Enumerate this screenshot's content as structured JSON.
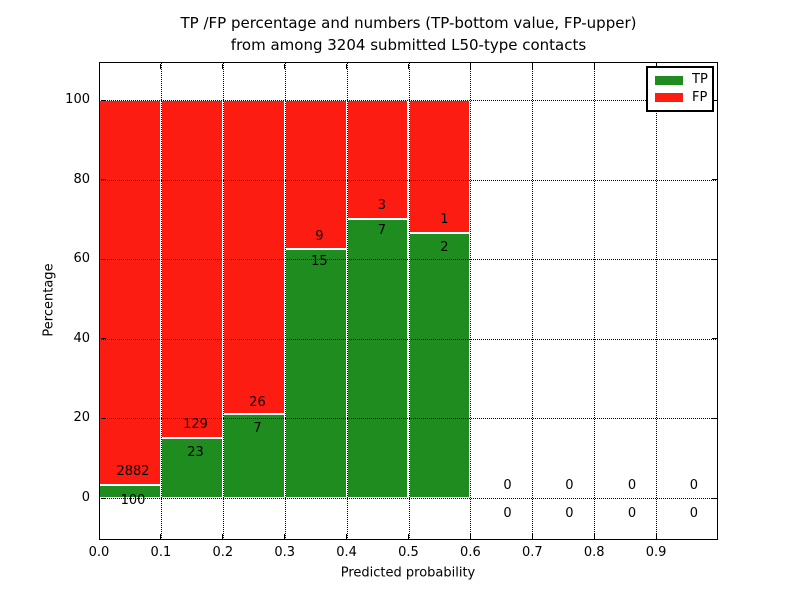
{
  "title": {
    "line1": "TP /FP percentage and numbers (TP-bottom value, FP-upper)",
    "line2": "from among 3204 submitted L50-type contacts"
  },
  "axes": {
    "xlabel": "Predicted probability",
    "ylabel": "Percentage",
    "x_tick_labels": [
      "0.0",
      "0.1",
      "0.2",
      "0.3",
      "0.4",
      "0.5",
      "0.6",
      "0.7",
      "0.8",
      "0.9"
    ],
    "x_tick_values": [
      0.0,
      0.1,
      0.2,
      0.3,
      0.4,
      0.5,
      0.6,
      0.7,
      0.8,
      0.9
    ],
    "y_tick_labels": [
      "0",
      "20",
      "40",
      "60",
      "80",
      "100"
    ],
    "y_tick_values": [
      0,
      20,
      40,
      60,
      80,
      100
    ]
  },
  "legend": {
    "items": [
      {
        "label": "TP",
        "color": "#1e8c1e"
      },
      {
        "label": "FP",
        "color": "#fc1c12"
      }
    ],
    "position": "upper right"
  },
  "colors": {
    "tp_green": "#1e8c1e",
    "fp_red": "#fc1c12",
    "grid": "#000000",
    "background": "#ffffff",
    "text": "#000000"
  },
  "chart_data": {
    "type": "bar",
    "stacked": true,
    "normalized_to_percent": true,
    "title": "TP /FP percentage and numbers (TP-bottom value, FP-upper) from among 3204 submitted L50-type contacts",
    "xlabel": "Predicted probability",
    "ylabel": "Percentage",
    "total_contacts": 3204,
    "xlim": [
      0.0,
      1.0
    ],
    "ylim": [
      -11,
      110
    ],
    "grid": "dotted",
    "legend_position": "upper right",
    "bin_edges": [
      0.0,
      0.1,
      0.2,
      0.3,
      0.4,
      0.5,
      0.6,
      0.7,
      0.8,
      0.9,
      1.0
    ],
    "categories": [
      "0.0-0.1",
      "0.1-0.2",
      "0.2-0.3",
      "0.3-0.4",
      "0.4-0.5",
      "0.5-0.6",
      "0.6-0.7",
      "0.7-0.8",
      "0.8-0.9",
      "0.9-1.0"
    ],
    "series": [
      {
        "name": "TP",
        "color": "#1e8c1e",
        "counts": [
          100,
          23,
          7,
          15,
          7,
          2,
          0,
          0,
          0,
          0
        ],
        "pct": [
          3.35,
          15.13,
          21.21,
          62.5,
          70.0,
          66.67,
          0,
          0,
          0,
          0
        ]
      },
      {
        "name": "FP",
        "color": "#fc1c12",
        "counts": [
          2882,
          129,
          26,
          9,
          3,
          1,
          0,
          0,
          0,
          0
        ],
        "pct": [
          96.65,
          84.87,
          78.79,
          37.5,
          30.0,
          33.33,
          0,
          0,
          0,
          0
        ]
      }
    ],
    "annotations": [
      {
        "x": 0.055,
        "fp_text": "2882",
        "fp_y": 6.5,
        "tp_text": "100",
        "tp_y": -0.8
      },
      {
        "x": 0.156,
        "fp_text": "129",
        "fp_y": 18.4,
        "tp_text": "23",
        "tp_y": 11.2
      },
      {
        "x": 0.256,
        "fp_text": "26",
        "fp_y": 23.9,
        "tp_text": "7",
        "tp_y": 17.4
      },
      {
        "x": 0.356,
        "fp_text": "9",
        "fp_y": 65.5,
        "tp_text": "15",
        "tp_y": 59.2
      },
      {
        "x": 0.457,
        "fp_text": "3",
        "fp_y": 73.3,
        "tp_text": "7",
        "tp_y": 67.0
      },
      {
        "x": 0.558,
        "fp_text": "1",
        "fp_y": 69.8,
        "tp_text": "2",
        "tp_y": 62.7
      },
      {
        "x": 0.66,
        "fp_text": "0",
        "fp_y": 3.0,
        "tp_text": "0",
        "tp_y": -4.0
      },
      {
        "x": 0.76,
        "fp_text": "0",
        "fp_y": 3.0,
        "tp_text": "0",
        "tp_y": -4.0
      },
      {
        "x": 0.861,
        "fp_text": "0",
        "fp_y": 3.0,
        "tp_text": "0",
        "tp_y": -4.0
      },
      {
        "x": 0.961,
        "fp_text": "0",
        "fp_y": 3.0,
        "tp_text": "0",
        "tp_y": -4.0
      }
    ]
  }
}
